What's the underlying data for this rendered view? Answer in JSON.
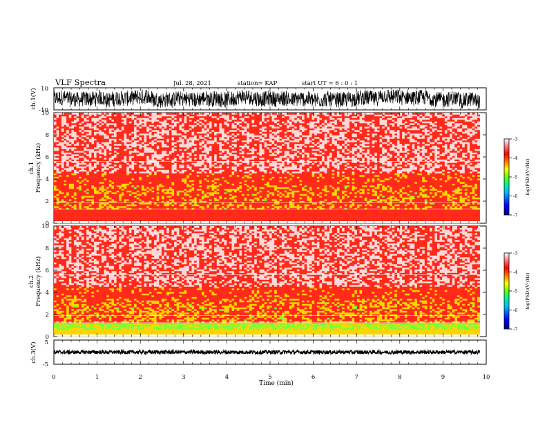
{
  "header": {
    "title": "VLF Spectra",
    "date": "Jul. 28, 2021",
    "station": "station= KAP",
    "start": "start UT =  6 : 0 : 1"
  },
  "colors": {
    "trace": "#000000",
    "colormap": [
      "#00008b",
      "#0000ff",
      "#00bfff",
      "#00ff7f",
      "#7fff00",
      "#ffff00",
      "#ff8c00",
      "#ff0000",
      "#ff8080",
      "#ffffff"
    ]
  },
  "chart_data": [
    {
      "type": "line",
      "panel": "ch1-waveform",
      "ylabel": "ch.1(V)",
      "ylim": [
        -10,
        10
      ],
      "ticks": [
        "10",
        "-10"
      ],
      "description_values": "dense noisy time-series, amplitude roughly between -8 and 8 V"
    },
    {
      "type": "heatmap",
      "panel": "ch1-spectrogram",
      "ylabel_line1": "ch.1",
      "ylabel_line2": "Frequency (kHz)",
      "ylim": [
        0,
        10
      ],
      "yticks": [
        "0",
        "2",
        "4",
        "6",
        "8",
        "10"
      ],
      "colorbar": {
        "label": "log(PSD)(V²/Hz)",
        "range": [
          -7,
          -3
        ],
        "ticks": [
          "-3",
          "-4",
          "-5",
          "-6",
          "-7"
        ]
      }
    },
    {
      "type": "heatmap",
      "panel": "ch2-spectrogram",
      "ylabel_line1": "ch.2",
      "ylabel_line2": "Frequency (kHz)",
      "ylim": [
        0,
        10
      ],
      "yticks": [
        "0",
        "2",
        "4",
        "6",
        "8",
        "10"
      ],
      "colorbar": {
        "label": "log(PSD)(V²/Hz)",
        "range": [
          -7,
          -3
        ],
        "ticks": [
          "-3",
          "-4",
          "-5",
          "-6",
          "-7"
        ]
      }
    },
    {
      "type": "line",
      "panel": "ch3-waveform",
      "ylabel": "ch.3(V)",
      "ylim": [
        -5,
        5
      ],
      "ticks": [
        "5",
        "-5"
      ]
    }
  ],
  "xaxis": {
    "label": "Time (min)",
    "range": [
      0,
      10
    ],
    "ticks": [
      "0",
      "1",
      "2",
      "3",
      "4",
      "5",
      "6",
      "7",
      "8",
      "9",
      "10"
    ]
  }
}
